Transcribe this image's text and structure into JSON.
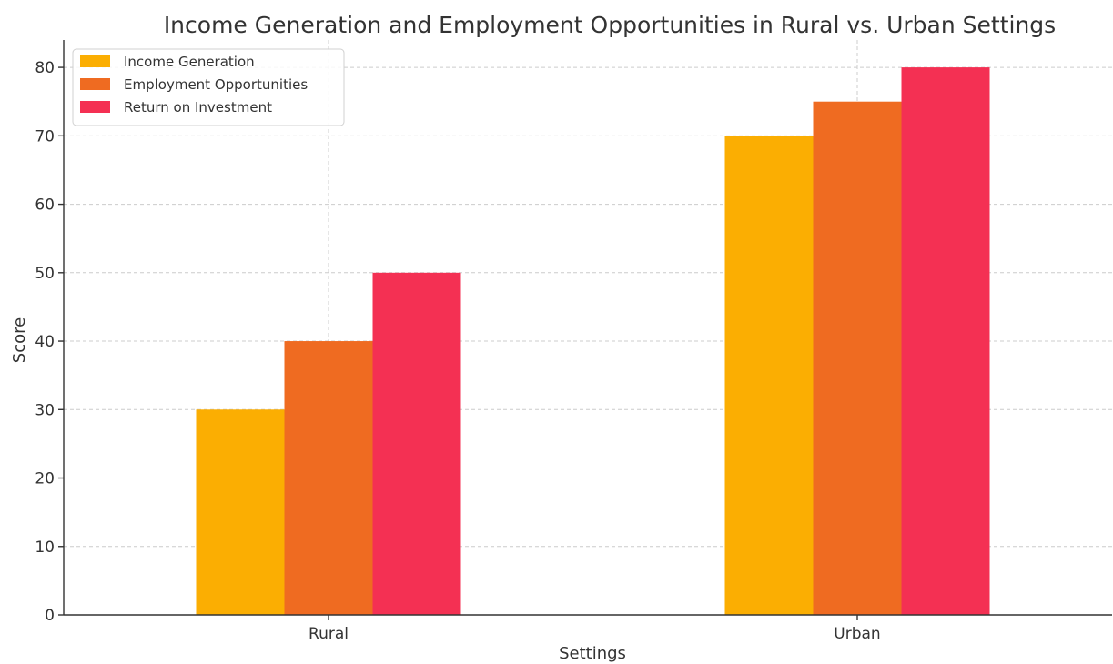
{
  "chart_data": {
    "type": "bar",
    "title": "Income Generation and Employment Opportunities in Rural vs. Urban Settings",
    "xlabel": "Settings",
    "ylabel": "Score",
    "categories": [
      "Rural",
      "Urban"
    ],
    "series": [
      {
        "name": "Income Generation",
        "values": [
          30,
          70
        ],
        "color": "#FBAE02"
      },
      {
        "name": "Employment Opportunities",
        "values": [
          40,
          75
        ],
        "color": "#EF6B21"
      },
      {
        "name": "Return on Investment",
        "values": [
          50,
          80
        ],
        "color": "#F43053"
      }
    ],
    "ylim": [
      0,
      84
    ],
    "yticks": [
      0,
      10,
      20,
      30,
      40,
      50,
      60,
      70,
      80
    ],
    "grid": true,
    "legend": "top-left"
  }
}
